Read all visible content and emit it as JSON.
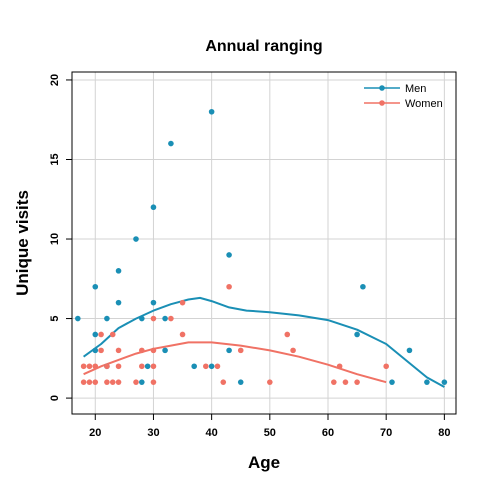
{
  "chart_data": {
    "type": "scatter",
    "title": "Annual ranging",
    "xlabel": "Age",
    "ylabel": "Unique visits",
    "xlim": [
      16,
      82
    ],
    "ylim": [
      -1,
      20.5
    ],
    "xticks": [
      20,
      30,
      40,
      50,
      60,
      70,
      80
    ],
    "yticks": [
      0,
      5,
      10,
      15,
      20
    ],
    "grid": true,
    "legend_position": "top-right",
    "series": [
      {
        "name": "Men",
        "color": "#1a8fb5",
        "points": [
          [
            17,
            5
          ],
          [
            20,
            7
          ],
          [
            20,
            4
          ],
          [
            20,
            3
          ],
          [
            22,
            5
          ],
          [
            22,
            2
          ],
          [
            24,
            8
          ],
          [
            24,
            6
          ],
          [
            27,
            10
          ],
          [
            28,
            5
          ],
          [
            28,
            1
          ],
          [
            29,
            2
          ],
          [
            30,
            12
          ],
          [
            30,
            6
          ],
          [
            32,
            3
          ],
          [
            32,
            5
          ],
          [
            33,
            16
          ],
          [
            37,
            2
          ],
          [
            40,
            18
          ],
          [
            40,
            2
          ],
          [
            43,
            9
          ],
          [
            43,
            3
          ],
          [
            45,
            1
          ],
          [
            65,
            4
          ],
          [
            66,
            7
          ],
          [
            71,
            1
          ],
          [
            74,
            3
          ],
          [
            77,
            1
          ],
          [
            80,
            1
          ]
        ],
        "smooth": [
          [
            18,
            2.6
          ],
          [
            21,
            3.4
          ],
          [
            24,
            4.4
          ],
          [
            27,
            5.0
          ],
          [
            30,
            5.5
          ],
          [
            33,
            5.9
          ],
          [
            36,
            6.2
          ],
          [
            38,
            6.3
          ],
          [
            40,
            6.1
          ],
          [
            43,
            5.7
          ],
          [
            46,
            5.5
          ],
          [
            50,
            5.4
          ],
          [
            55,
            5.2
          ],
          [
            60,
            4.9
          ],
          [
            65,
            4.3
          ],
          [
            70,
            3.4
          ],
          [
            74,
            2.2
          ],
          [
            77,
            1.3
          ],
          [
            80,
            0.7
          ]
        ]
      },
      {
        "name": "Women",
        "color": "#f07265",
        "points": [
          [
            18,
            2
          ],
          [
            18,
            1
          ],
          [
            19,
            1
          ],
          [
            19,
            2
          ],
          [
            20,
            1
          ],
          [
            20,
            2
          ],
          [
            21,
            3
          ],
          [
            21,
            4
          ],
          [
            22,
            1
          ],
          [
            22,
            2
          ],
          [
            23,
            1
          ],
          [
            23,
            4
          ],
          [
            24,
            1
          ],
          [
            24,
            2
          ],
          [
            24,
            3
          ],
          [
            27,
            1
          ],
          [
            28,
            2
          ],
          [
            28,
            3
          ],
          [
            30,
            5
          ],
          [
            30,
            1
          ],
          [
            30,
            2
          ],
          [
            30,
            3
          ],
          [
            33,
            5
          ],
          [
            35,
            6
          ],
          [
            35,
            4
          ],
          [
            39,
            2
          ],
          [
            41,
            2
          ],
          [
            42,
            1
          ],
          [
            43,
            7
          ],
          [
            45,
            3
          ],
          [
            50,
            1
          ],
          [
            53,
            4
          ],
          [
            54,
            3
          ],
          [
            61,
            1
          ],
          [
            62,
            2
          ],
          [
            63,
            1
          ],
          [
            65,
            1
          ],
          [
            70,
            2
          ]
        ],
        "smooth": [
          [
            18,
            1.5
          ],
          [
            21,
            2.0
          ],
          [
            24,
            2.4
          ],
          [
            27,
            2.8
          ],
          [
            30,
            3.1
          ],
          [
            33,
            3.3
          ],
          [
            36,
            3.5
          ],
          [
            40,
            3.5
          ],
          [
            45,
            3.3
          ],
          [
            50,
            3.0
          ],
          [
            55,
            2.6
          ],
          [
            60,
            2.1
          ],
          [
            65,
            1.5
          ],
          [
            70,
            1.0
          ]
        ]
      }
    ]
  }
}
